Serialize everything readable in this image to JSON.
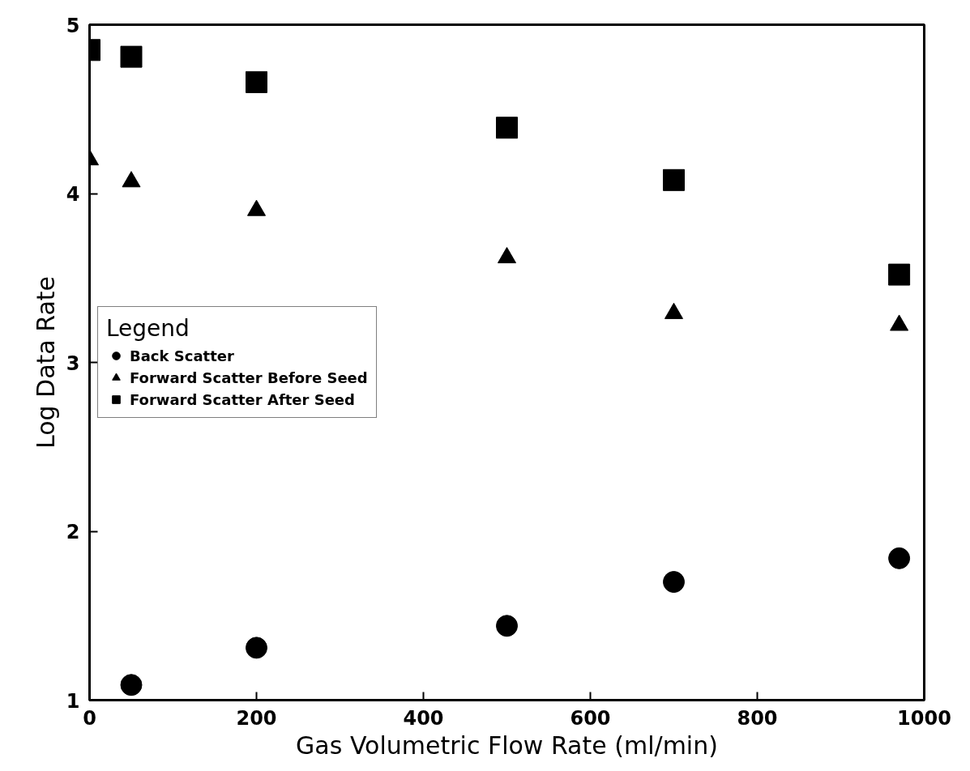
{
  "chart_data": {
    "type": "scatter",
    "xlabel": "Gas Volumetric Flow Rate (ml/min)",
    "ylabel": "Log Data Rate",
    "legend_title": "Legend",
    "xlim": [
      0,
      1000
    ],
    "ylim": [
      1,
      5
    ],
    "xticks": [
      0,
      200,
      400,
      600,
      800,
      1000
    ],
    "yticks": [
      1,
      2,
      3,
      4,
      5
    ],
    "grid": false,
    "legend": "left",
    "series": [
      {
        "name": "Back Scatter",
        "color": "#000000",
        "marker": "circle",
        "x": [
          50,
          200,
          500,
          700,
          970
        ],
        "values": [
          1.09,
          1.31,
          1.44,
          1.7,
          1.84
        ]
      },
      {
        "name": "Forward Scatter Before Seed",
        "color": "#000000",
        "marker": "triangle",
        "x": [
          0,
          50,
          200,
          500,
          700,
          970
        ],
        "values": [
          4.2,
          4.07,
          3.9,
          3.62,
          3.29,
          3.22
        ]
      },
      {
        "name": "Forward Scatter After Seed",
        "color": "#000000",
        "marker": "square",
        "x": [
          0,
          50,
          200,
          500,
          700,
          970
        ],
        "values": [
          4.85,
          4.81,
          4.66,
          4.39,
          4.08,
          3.52
        ]
      }
    ]
  }
}
